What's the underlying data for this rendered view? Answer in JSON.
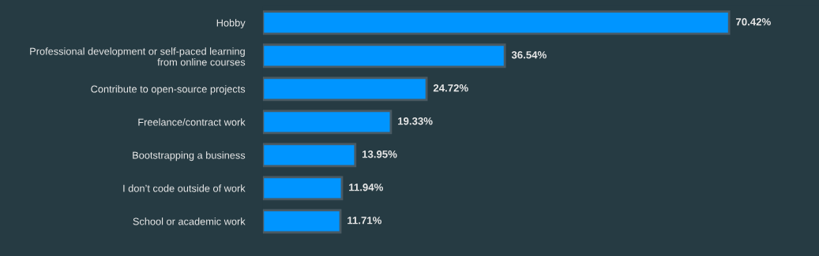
{
  "chart_data": {
    "type": "bar",
    "orientation": "horizontal",
    "categories": [
      "Hobby",
      "Professional development or self-paced learning\nfrom online courses",
      "Contribute to open-source projects",
      "Freelance/contract work",
      "Bootstrapping a business",
      "I don’t code outside of work",
      "School or academic work"
    ],
    "values": [
      70.42,
      36.54,
      24.72,
      19.33,
      13.95,
      11.94,
      11.71
    ],
    "value_labels": [
      "70.42%",
      "36.54%",
      "24.72%",
      "19.33%",
      "13.95%",
      "11.94%",
      "11.71%"
    ],
    "color": "#0095ff",
    "xlim": [
      0,
      84
    ],
    "tick_labels": "y",
    "grid": false,
    "legend": false
  }
}
